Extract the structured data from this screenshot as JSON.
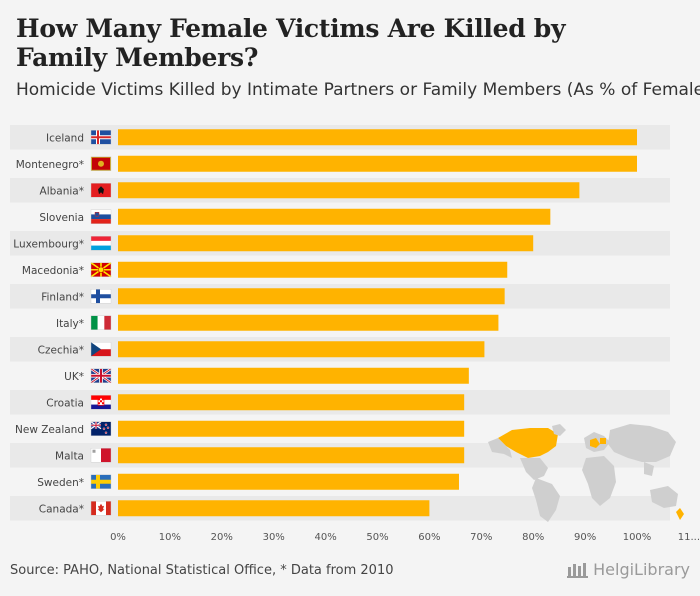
{
  "header": {
    "title": "How Many Female Victims Are Killed by Family Members?",
    "subtitle": "Homicide Victims Killed by Intimate Partners or Family Members (As % of Female"
  },
  "footer": {
    "source": "Source: PAHO, National Statistical Office, * Data from 2010",
    "logo": "HelgiLibrary"
  },
  "colors": {
    "bar": "#ffb300",
    "row_band": "#e9e9e9",
    "map_land": "#cfcfcf",
    "map_highlight": "#ffb300"
  },
  "chart_data": {
    "type": "bar",
    "orientation": "horizontal",
    "title": "How Many Female Victims Are Killed by Family Members?",
    "subtitle": "Homicide Victims Killed by Intimate Partners or Family Members (As % of Female",
    "categories": [
      "Iceland",
      "Montenegro*",
      "Albania*",
      "Slovenia",
      "Luxembourg*",
      "Macedonia*",
      "Finland*",
      "Italy*",
      "Czechia*",
      "UK*",
      "Croatia",
      "New Zealand",
      "Malta",
      "Sweden*",
      "Canada*"
    ],
    "flags": [
      "iceland",
      "montenegro",
      "albania",
      "slovenia",
      "luxembourg",
      "macedonia",
      "finland",
      "italy",
      "czechia",
      "uk",
      "croatia",
      "new-zealand",
      "malta",
      "sweden",
      "canada"
    ],
    "values": [
      100,
      100,
      88.9,
      83.3,
      80.0,
      75.0,
      74.5,
      73.3,
      70.6,
      67.6,
      66.7,
      66.7,
      66.7,
      65.7,
      60.0
    ],
    "xlim": [
      0,
      110
    ],
    "xticks": [
      "0%",
      "10%",
      "20%",
      "30%",
      "40%",
      "50%",
      "60%",
      "70%",
      "80%",
      "90%",
      "100%",
      "11..."
    ],
    "xlabel": "",
    "ylabel": ""
  }
}
